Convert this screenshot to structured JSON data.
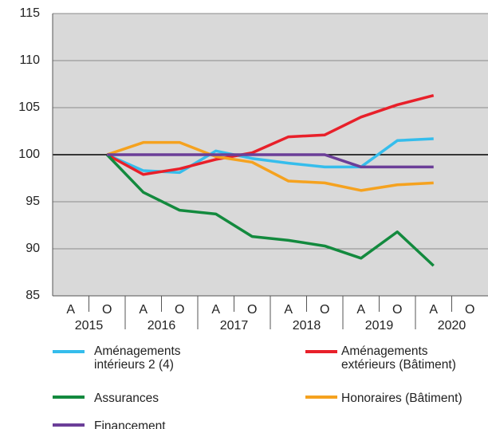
{
  "chart_data": {
    "type": "line",
    "categories": [
      "A",
      "O",
      "A",
      "O",
      "A",
      "O",
      "A",
      "O",
      "A",
      "O",
      "A",
      "O"
    ],
    "x_groups": [
      "2015",
      "2016",
      "2017",
      "2018",
      "2019",
      "2020"
    ],
    "series": [
      {
        "name": "Aménagements intérieurs 2 (4)",
        "color": "#35bdec",
        "values": [
          null,
          100,
          98.3,
          98.1,
          100.4,
          99.6,
          99.1,
          98.7,
          98.7,
          101.5,
          101.7,
          null
        ]
      },
      {
        "name": "Aménagements extérieurs (Bâtiment)",
        "color": "#e8202a",
        "values": [
          null,
          100,
          97.9,
          98.5,
          99.5,
          100.2,
          101.9,
          102.1,
          104.0,
          105.3,
          106.3,
          null
        ]
      },
      {
        "name": "Assurances",
        "color": "#138a3e",
        "values": [
          null,
          100,
          96.0,
          94.1,
          93.7,
          91.3,
          90.9,
          90.3,
          89.0,
          91.8,
          88.2,
          null
        ]
      },
      {
        "name": "Honoraires (Bâtiment)",
        "color": "#f5a21f",
        "values": [
          null,
          100,
          101.3,
          101.3,
          99.8,
          99.2,
          97.2,
          97.0,
          96.2,
          96.8,
          97.0,
          null
        ]
      },
      {
        "name": "Financement",
        "color": "#6b3e98",
        "values": [
          null,
          100,
          100,
          100,
          100,
          100,
          100,
          100,
          98.7,
          98.7,
          98.7,
          null
        ]
      }
    ],
    "ylim": [
      85,
      115
    ],
    "yticks": [
      85,
      90,
      95,
      100,
      105,
      110,
      115
    ],
    "reference_line": 100,
    "grid": true
  }
}
